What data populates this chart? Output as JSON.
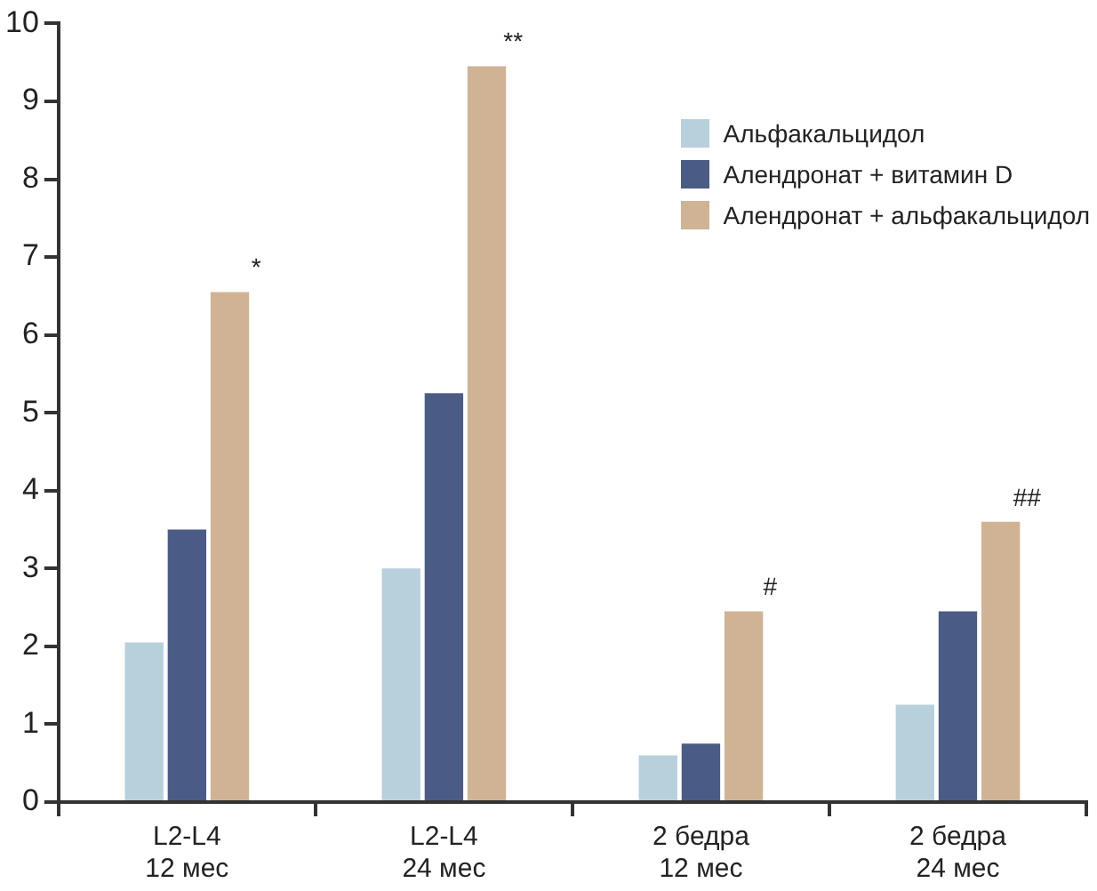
{
  "chart_data": {
    "type": "bar",
    "categories": [
      "L2-L4\n12 мес",
      "L2-L4\n24 мес",
      "2 бедра\n12 мес",
      "2 бедра\n24 мес"
    ],
    "series": [
      {
        "name": "Альфакальцидол",
        "color": "#b8d0dc",
        "values": [
          2.05,
          3.0,
          0.6,
          1.25
        ]
      },
      {
        "name": "Алендронат + витамин D",
        "color": "#4a5c86",
        "values": [
          3.5,
          5.25,
          0.75,
          2.45
        ]
      },
      {
        "name": "Алендронат + альфакальцидол",
        "color": "#d0b394",
        "values": [
          6.55,
          9.45,
          2.45,
          3.6
        ],
        "value_labels": [
          "*",
          "**",
          "#",
          "##"
        ]
      }
    ],
    "ylim": [
      0,
      10
    ],
    "yticks": [
      0,
      1,
      2,
      3,
      4,
      5,
      6,
      7,
      8,
      9,
      10
    ],
    "grid": false,
    "legend": "top right"
  }
}
